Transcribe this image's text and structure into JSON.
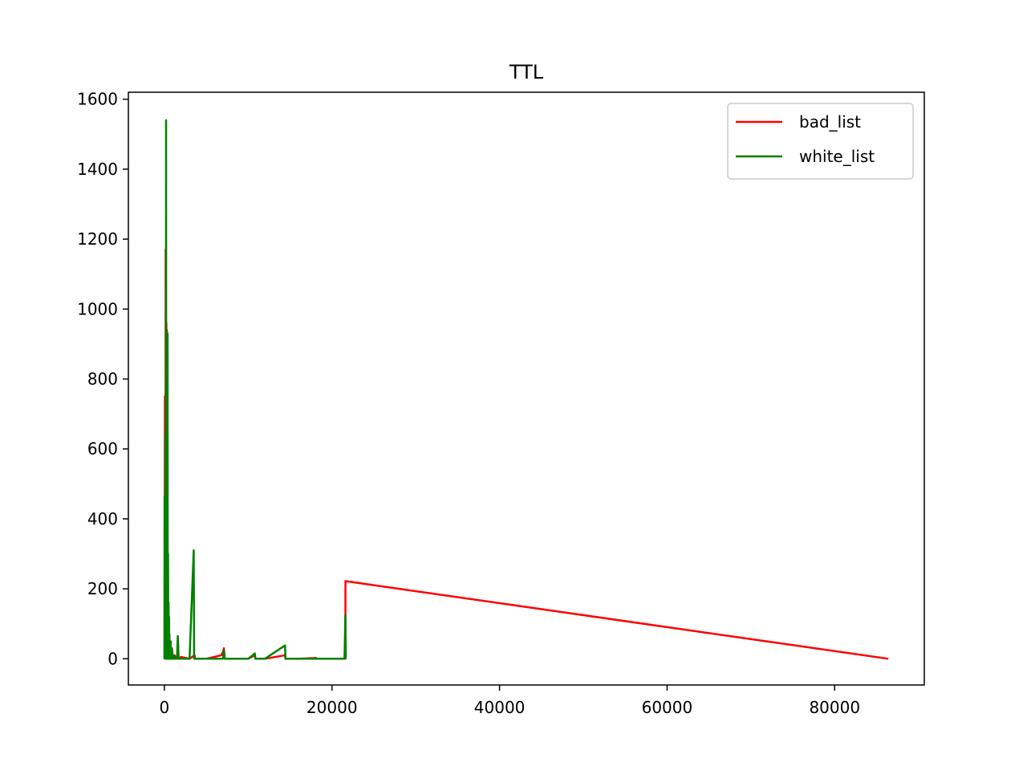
{
  "chart_data": {
    "type": "line",
    "title": "TTL",
    "xlabel": "",
    "ylabel": "",
    "xlim": [
      -4300,
      90700
    ],
    "ylim": [
      -75,
      1620
    ],
    "xticks": [
      0,
      20000,
      40000,
      60000,
      80000
    ],
    "xtick_labels": [
      "0",
      "20000",
      "40000",
      "60000",
      "80000"
    ],
    "yticks": [
      0,
      200,
      400,
      600,
      800,
      1000,
      1200,
      1400,
      1600
    ],
    "ytick_labels": [
      "0",
      "200",
      "400",
      "600",
      "800",
      "1000",
      "1200",
      "1400",
      "1600"
    ],
    "grid": false,
    "legend_position": "top-right",
    "series": [
      {
        "name": "bad_list",
        "color": "#ff0000",
        "x": [
          0,
          30,
          60,
          90,
          120,
          150,
          180,
          210,
          240,
          270,
          300,
          330,
          360,
          400,
          450,
          500,
          550,
          600,
          650,
          700,
          750,
          800,
          900,
          1000,
          1200,
          1500,
          2000,
          3000,
          3600,
          3650,
          5000,
          6800,
          7000,
          7100,
          7200,
          8000,
          10000,
          10800,
          10850,
          12000,
          14400,
          14450,
          16000,
          18000,
          18050,
          21600,
          21610,
          86400
        ],
        "y": [
          0,
          0,
          750,
          10,
          0,
          1170,
          0,
          0,
          960,
          0,
          940,
          0,
          200,
          0,
          120,
          0,
          60,
          0,
          40,
          0,
          20,
          0,
          30,
          0,
          10,
          0,
          5,
          0,
          10,
          0,
          0,
          10,
          20,
          30,
          0,
          0,
          0,
          10,
          0,
          0,
          10,
          0,
          0,
          2,
          0,
          0,
          222,
          0
        ]
      },
      {
        "name": "white_list",
        "color": "#008000",
        "x": [
          0,
          20,
          40,
          60,
          80,
          100,
          120,
          140,
          160,
          180,
          200,
          220,
          240,
          260,
          280,
          300,
          320,
          340,
          360,
          380,
          400,
          420,
          440,
          460,
          480,
          500,
          520,
          540,
          560,
          580,
          600,
          620,
          650,
          700,
          750,
          800,
          850,
          900,
          950,
          1000,
          1050,
          1100,
          1150,
          1200,
          1250,
          1300,
          1500,
          1600,
          1700,
          1750,
          1800,
          2000,
          2500,
          3000,
          3500,
          3550,
          3600,
          3650,
          3700,
          4000,
          5000,
          6000,
          7000,
          7100,
          7200,
          7250,
          8000,
          10000,
          10800,
          10850,
          10900,
          12000,
          14400,
          14450,
          14500,
          16000,
          18000,
          18050,
          18100,
          21500,
          21600,
          21650
        ],
        "y": [
          0,
          465,
          0,
          0,
          160,
          0,
          0,
          640,
          0,
          0,
          1540,
          0,
          0,
          770,
          0,
          0,
          470,
          0,
          0,
          930,
          0,
          0,
          300,
          0,
          0,
          160,
          0,
          0,
          120,
          0,
          70,
          0,
          40,
          0,
          50,
          0,
          30,
          0,
          20,
          0,
          10,
          0,
          5,
          0,
          5,
          0,
          0,
          65,
          0,
          0,
          0,
          0,
          0,
          0,
          310,
          0,
          5,
          0,
          0,
          0,
          0,
          0,
          0,
          25,
          0,
          0,
          0,
          0,
          15,
          0,
          0,
          0,
          38,
          0,
          0,
          0,
          0,
          3,
          0,
          0,
          125,
          0
        ]
      }
    ]
  }
}
